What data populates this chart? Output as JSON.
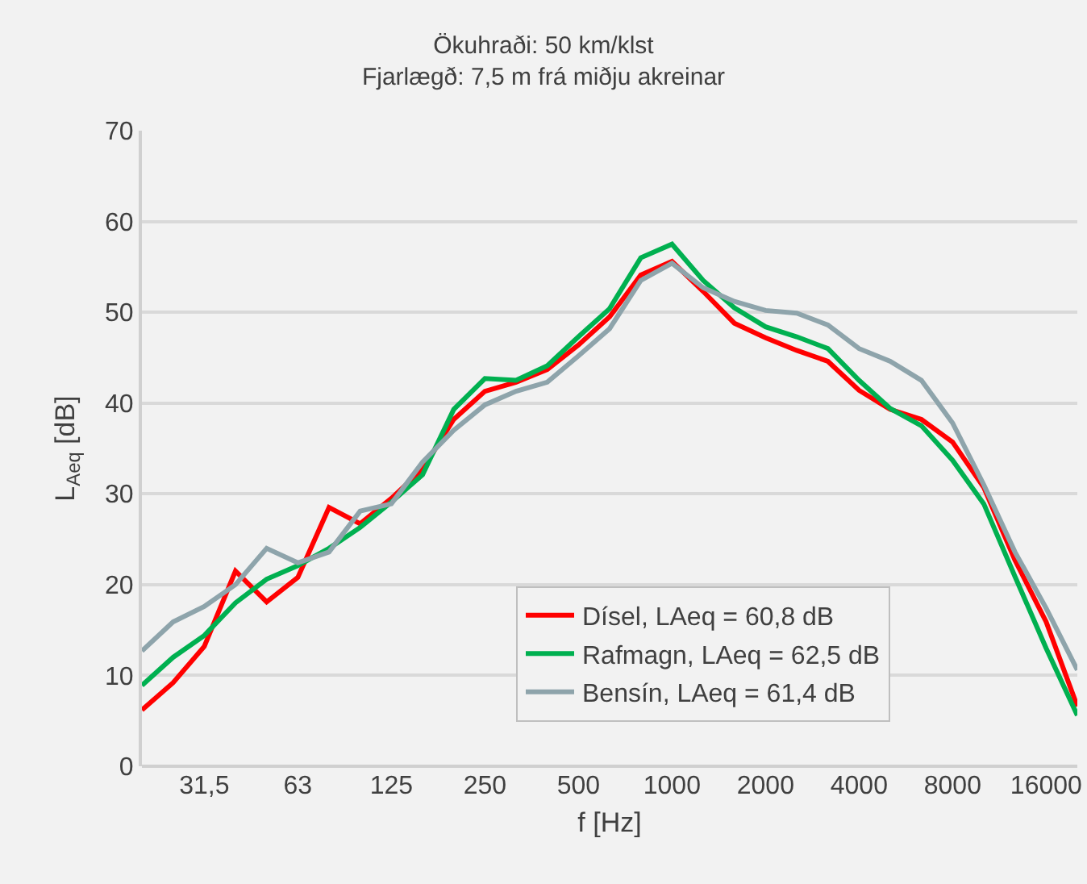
{
  "chart_data": {
    "type": "line",
    "title": "Ökuhraði: 50 km/klst",
    "subtitle": "Fjarlægð: 7,5 m frá miðju akreinar",
    "xlabel": "f [Hz]",
    "ylabel": "L$_{Aeq}$ [dB]",
    "categories": [
      null,
      null,
      "31,5",
      null,
      null,
      "63",
      null,
      null,
      "125",
      null,
      null,
      "250",
      null,
      null,
      "500",
      null,
      null,
      "1000",
      null,
      null,
      "2000",
      null,
      null,
      "4000",
      null,
      null,
      "8000",
      null,
      null,
      "16000",
      null
    ],
    "ylim": [
      0,
      70
    ],
    "yticks": [
      0,
      10,
      20,
      30,
      40,
      50,
      60,
      70
    ],
    "grid": "y",
    "legend": "bottom right",
    "marker": "none",
    "line_style": "solid",
    "series": [
      {
        "name": "Dísel, LAeq = 60,8 dB",
        "color": "#ff0000",
        "values": [
          6.2,
          9.2,
          13.2,
          21.5,
          18.1,
          20.8,
          28.5,
          26.7,
          29.5,
          32.7,
          38.2,
          41.3,
          42.3,
          43.7,
          46.4,
          49.5,
          54.1,
          55.6,
          52.3,
          48.8,
          47.2,
          45.8,
          44.6,
          41.4,
          39.3,
          38.2,
          35.7,
          30.7,
          22.7,
          15.9,
          6.6
        ]
      },
      {
        "name": "Rafmagn, LAeq = 62,5 dB",
        "color": "#00b050",
        "values": [
          8.9,
          12,
          14.4,
          18,
          20.6,
          22.1,
          24,
          26.3,
          29.1,
          32.1,
          39.3,
          42.7,
          42.5,
          44.1,
          47.3,
          50.4,
          56,
          57.5,
          53.5,
          50.5,
          48.4,
          47.3,
          46,
          42.5,
          39.4,
          37.5,
          33.7,
          28.9,
          20.9,
          13,
          5.6
        ]
      },
      {
        "name": "Bensín, LAeq = 61,4 dB",
        "color": "#8ea4ab",
        "values": [
          12.7,
          15.9,
          17.6,
          20,
          24,
          22.4,
          23.6,
          28.1,
          28.9,
          33.5,
          37,
          39.8,
          41.3,
          42.3,
          45.2,
          48.2,
          53.5,
          55.4,
          52.7,
          51.2,
          50.2,
          49.9,
          48.6,
          46,
          44.6,
          42.5,
          37.8,
          31,
          23.6,
          17.4,
          10.6
        ]
      }
    ]
  }
}
